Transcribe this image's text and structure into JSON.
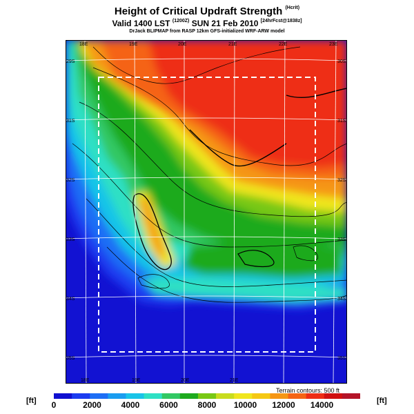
{
  "header": {
    "title": "Height of Critical Updraft Strength",
    "title_unit": "(Hcrit)",
    "subtitle": "Valid 1400 LST",
    "subtitle_zulu": "(1200Z)",
    "subtitle_date": "SUN 21 Feb 2010",
    "subtitle_run": "[24hrFcst@1838z]",
    "credit": "DrJack BLIPMAP from RASP 12km GFS-initialized WRF-ARW model"
  },
  "map": {
    "lon_labels_top": [
      "18E",
      "19E",
      "20E",
      "21E",
      "22E",
      "23E"
    ],
    "lon_labels_bottom": [
      "18E",
      "19E",
      "20E",
      "21E"
    ],
    "lat_labels_left": [
      "29S",
      "31S",
      "32S",
      "33S",
      "34S",
      "35S"
    ],
    "lat_labels_right": [
      "30S",
      "31S",
      "32S",
      "33S",
      "34S",
      "35S"
    ],
    "terrain_note": "Terrain contours: 500 ft"
  },
  "legend": {
    "unit": "[ft]",
    "ticks": [
      "0",
      "2000",
      "4000",
      "6000",
      "8000",
      "10000",
      "12000",
      "14000"
    ],
    "colors": [
      "#1010d0",
      "#1c3cf0",
      "#1e6ef5",
      "#1a9df0",
      "#19c4e8",
      "#2ee0c4",
      "#32c864",
      "#1eaa1e",
      "#78c814",
      "#c8dc1e",
      "#f0e61e",
      "#f5c814",
      "#f59614",
      "#f56414",
      "#ee2d14",
      "#d01010",
      "#b41428"
    ]
  }
}
